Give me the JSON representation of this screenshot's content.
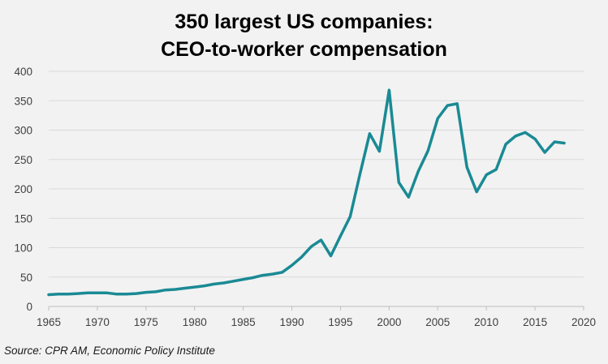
{
  "chart_data": {
    "type": "line",
    "title_lines": [
      "350 largest US companies:",
      "CEO-to-worker compensation"
    ],
    "xlabel": "",
    "ylabel": "",
    "xlim": [
      1965,
      2020
    ],
    "ylim": [
      0,
      400
    ],
    "x_ticks": [
      "1965",
      "1970",
      "1975",
      "1980",
      "1985",
      "1990",
      "1995",
      "2000",
      "2005",
      "2010",
      "2015",
      "2020"
    ],
    "y_ticks": [
      "0",
      "50",
      "100",
      "150",
      "200",
      "250",
      "300",
      "350",
      "400"
    ],
    "grid": true,
    "legend": "none",
    "line_color": "#1a8a94",
    "x": [
      1965,
      1966,
      1967,
      1968,
      1969,
      1970,
      1971,
      1972,
      1973,
      1974,
      1975,
      1976,
      1977,
      1978,
      1979,
      1980,
      1981,
      1982,
      1983,
      1984,
      1985,
      1986,
      1987,
      1988,
      1989,
      1990,
      1991,
      1992,
      1993,
      1994,
      1995,
      1996,
      1997,
      1998,
      1999,
      2000,
      2001,
      2002,
      2003,
      2004,
      2005,
      2006,
      2007,
      2008,
      2009,
      2010,
      2011,
      2012,
      2013,
      2014,
      2015,
      2016,
      2017,
      2018
    ],
    "values": [
      20,
      21,
      21,
      22,
      23,
      23,
      23,
      21,
      21,
      22,
      24,
      25,
      28,
      29,
      31,
      33,
      35,
      38,
      40,
      43,
      46,
      49,
      53,
      55,
      58,
      70,
      84,
      102,
      113,
      86,
      120,
      153,
      225,
      294,
      264,
      368,
      211,
      186,
      230,
      265,
      320,
      342,
      345,
      237,
      195,
      224,
      233,
      276,
      290,
      296,
      285,
      262,
      280,
      278
    ]
  },
  "source": "Source: CPR AM, Economic Policy Institute"
}
